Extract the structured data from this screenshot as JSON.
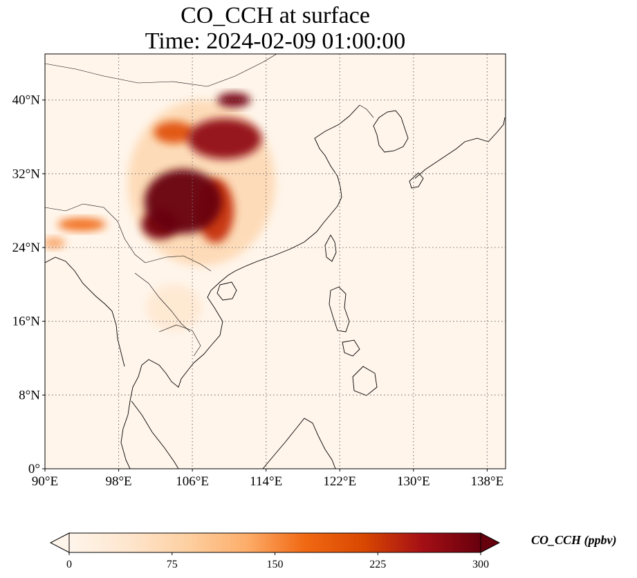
{
  "title": {
    "line1": "CO_CCH at surface",
    "line2": "Time: 2024-02-09 01:00:00"
  },
  "map": {
    "extent": {
      "lon_min": 90,
      "lon_max": 140,
      "lat_min": 0,
      "lat_max": 45
    },
    "x_ticks": [
      {
        "lon": 90,
        "label": "90°E"
      },
      {
        "lon": 98,
        "label": "98°E"
      },
      {
        "lon": 106,
        "label": "106°E"
      },
      {
        "lon": 114,
        "label": "114°E"
      },
      {
        "lon": 122,
        "label": "122°E"
      },
      {
        "lon": 130,
        "label": "130°E"
      },
      {
        "lon": 138,
        "label": "138°E"
      }
    ],
    "y_ticks": [
      {
        "lat": 0,
        "label": "0°"
      },
      {
        "lat": 8,
        "label": "8°N"
      },
      {
        "lat": 16,
        "label": "16°N"
      },
      {
        "lat": 24,
        "label": "24°N"
      },
      {
        "lat": 32,
        "label": "32°N"
      },
      {
        "lat": 40,
        "label": "40°N"
      }
    ],
    "gridlines": "dotted",
    "background_color": "#fff5eb"
  },
  "colorbar": {
    "label": "CO_CCH (ppbv)",
    "ticks": [
      0,
      75,
      150,
      225,
      300
    ],
    "min": 0,
    "max": 300,
    "colormap": "OrRd",
    "colors": [
      "#fff5eb",
      "#fee6ce",
      "#fdd0a2",
      "#fdae6b",
      "#f16913",
      "#d94801",
      "#a50f15",
      "#67000d"
    ],
    "extend": "both"
  },
  "plumes": [
    {
      "name": "main-plume-core",
      "lon": 105.0,
      "lat": 29.0,
      "rx": 4.2,
      "ry": 3.5,
      "value": 300
    },
    {
      "name": "main-plume-west",
      "lon": 102.5,
      "lat": 26.5,
      "rx": 2.0,
      "ry": 1.6,
      "value": 290
    },
    {
      "name": "main-plume-east",
      "lon": 108.5,
      "lat": 28.0,
      "rx": 2.0,
      "ry": 3.5,
      "value": 230
    },
    {
      "name": "north-plume",
      "lon": 109.5,
      "lat": 35.8,
      "rx": 4.0,
      "ry": 2.2,
      "value": 270
    },
    {
      "name": "north-plume-top",
      "lon": 110.5,
      "lat": 40.0,
      "rx": 1.8,
      "ry": 0.8,
      "value": 290
    },
    {
      "name": "north-plume-west",
      "lon": 104.0,
      "lat": 36.5,
      "rx": 2.2,
      "ry": 1.2,
      "value": 200
    },
    {
      "name": "outer-haze",
      "lon": 107.0,
      "lat": 31.0,
      "rx": 8.0,
      "ry": 9.0,
      "value": 80
    },
    {
      "name": "south-haze",
      "lon": 104.0,
      "lat": 17.5,
      "rx": 3.0,
      "ry": 2.5,
      "value": 45
    },
    {
      "name": "assam-plume",
      "lon": 94.0,
      "lat": 26.5,
      "rx": 2.6,
      "ry": 0.7,
      "value": 170
    },
    {
      "name": "bangladesh-plume",
      "lon": 91.0,
      "lat": 24.5,
      "rx": 1.2,
      "ry": 0.6,
      "value": 150
    }
  ]
}
